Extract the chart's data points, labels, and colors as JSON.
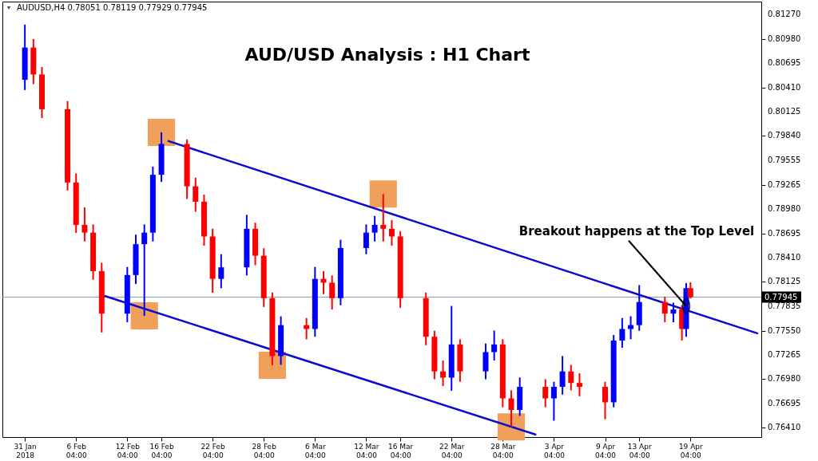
{
  "chart_data": {
    "type": "candlestick",
    "title": "AUD/USD Analysis : H1 Chart",
    "x": [
      "2018-01-31T04:00",
      "2018-02-01T04:00",
      "2018-02-02T04:00",
      "2018-02-05T04:00",
      "2018-02-06T04:00",
      "2018-02-07T04:00",
      "2018-02-08T04:00",
      "2018-02-09T04:00",
      "2018-02-12T04:00",
      "2018-02-13T04:00",
      "2018-02-14T04:00",
      "2018-02-15T04:00",
      "2018-02-16T04:00",
      "2018-02-19T04:00",
      "2018-02-20T04:00",
      "2018-02-21T04:00",
      "2018-02-22T04:00",
      "2018-02-23T04:00",
      "2018-02-26T04:00",
      "2018-02-27T04:00",
      "2018-02-28T04:00",
      "2018-03-01T04:00",
      "2018-03-02T04:00",
      "2018-03-05T04:00",
      "2018-03-06T04:00",
      "2018-03-07T04:00",
      "2018-03-08T04:00",
      "2018-03-09T04:00",
      "2018-03-12T04:00",
      "2018-03-13T04:00",
      "2018-03-14T04:00",
      "2018-03-15T04:00",
      "2018-03-16T04:00",
      "2018-03-19T04:00",
      "2018-03-20T04:00",
      "2018-03-21T04:00",
      "2018-03-22T04:00",
      "2018-03-23T04:00",
      "2018-03-26T04:00",
      "2018-03-27T04:00",
      "2018-03-28T04:00",
      "2018-03-29T04:00",
      "2018-03-30T04:00",
      "2018-04-02T04:00",
      "2018-04-03T04:00",
      "2018-04-04T04:00",
      "2018-04-05T04:00",
      "2018-04-06T04:00",
      "2018-04-09T04:00",
      "2018-04-10T04:00",
      "2018-04-11T04:00",
      "2018-04-12T04:00",
      "2018-04-13T04:00",
      "2018-04-16T04:00",
      "2018-04-17T04:00",
      "2018-04-18T04:00",
      "2018-04-18T16:00",
      "2018-04-19T04:00"
    ],
    "ohlc": [
      [
        0.805,
        0.8115,
        0.8038,
        0.8088
      ],
      [
        0.8088,
        0.8098,
        0.8045,
        0.80563
      ],
      [
        0.80563,
        0.8065,
        0.8005,
        0.80155
      ],
      [
        0.80155,
        0.8025,
        0.792,
        0.79293
      ],
      [
        0.79293,
        0.794,
        0.787,
        0.78795
      ],
      [
        0.78795,
        0.79,
        0.786,
        0.78704
      ],
      [
        0.78704,
        0.788,
        0.7815,
        0.78251
      ],
      [
        0.78251,
        0.7835,
        0.7753,
        0.77752
      ],
      [
        0.77752,
        0.783,
        0.7765,
        0.78205
      ],
      [
        0.78205,
        0.7868,
        0.781,
        0.78568
      ],
      [
        0.78568,
        0.788,
        0.77725,
        0.78704
      ],
      [
        0.78704,
        0.7948,
        0.786,
        0.79384
      ],
      [
        0.79384,
        0.79883,
        0.793,
        0.79747
      ],
      [
        0.79747,
        0.798,
        0.791,
        0.79248
      ],
      [
        0.79248,
        0.7935,
        0.7895,
        0.79067
      ],
      [
        0.79067,
        0.7915,
        0.7855,
        0.78659
      ],
      [
        0.78659,
        0.7875,
        0.77997,
        0.7816
      ],
      [
        0.7816,
        0.7845,
        0.7805,
        0.78296
      ],
      [
        0.78296,
        0.78913,
        0.782,
        0.78749
      ],
      [
        0.78749,
        0.7882,
        0.7832,
        0.78432
      ],
      [
        0.78432,
        0.7852,
        0.7783,
        0.77933
      ],
      [
        0.77933,
        0.78,
        0.77145,
        0.77253
      ],
      [
        0.77253,
        0.7772,
        0.7715,
        0.77616
      ],
      [
        0.77616,
        0.777,
        0.7745,
        0.77571
      ],
      [
        0.77571,
        0.783,
        0.7748,
        0.7816
      ],
      [
        0.7816,
        0.7825,
        0.7798,
        0.78115
      ],
      [
        0.78115,
        0.782,
        0.778,
        0.77933
      ],
      [
        0.77933,
        0.7862,
        0.7785,
        0.78523
      ],
      [
        0.78523,
        0.788,
        0.7845,
        0.78704
      ],
      [
        0.78704,
        0.789,
        0.786,
        0.78795
      ],
      [
        0.78795,
        0.79157,
        0.786,
        0.78749
      ],
      [
        0.78749,
        0.7885,
        0.7855,
        0.78659
      ],
      [
        0.78659,
        0.7872,
        0.7782,
        0.77933
      ],
      [
        0.77933,
        0.78,
        0.7738,
        0.7748
      ],
      [
        0.7748,
        0.7755,
        0.7698,
        0.77072
      ],
      [
        0.77072,
        0.772,
        0.769,
        0.76999
      ],
      [
        0.76999,
        0.77842,
        0.76845,
        0.77389
      ],
      [
        0.77389,
        0.7745,
        0.7695,
        0.77072
      ],
      [
        0.77072,
        0.774,
        0.7698,
        0.77299
      ],
      [
        0.77299,
        0.77552,
        0.772,
        0.77389
      ],
      [
        0.77389,
        0.7745,
        0.7665,
        0.76755
      ],
      [
        0.76755,
        0.7685,
        0.76419,
        0.76619
      ],
      [
        0.76619,
        0.77,
        0.7655,
        0.76891
      ],
      [
        0.76891,
        0.7698,
        0.7665,
        0.76755
      ],
      [
        0.76755,
        0.7695,
        0.76492,
        0.76891
      ],
      [
        0.76891,
        0.77253,
        0.768,
        0.77072
      ],
      [
        0.77072,
        0.7715,
        0.7685,
        0.76936
      ],
      [
        0.76936,
        0.7705,
        0.7678,
        0.76891
      ],
      [
        0.76891,
        0.7695,
        0.7651,
        0.76709
      ],
      [
        0.76709,
        0.775,
        0.7665,
        0.77435
      ],
      [
        0.77435,
        0.777,
        0.7735,
        0.77571
      ],
      [
        0.77571,
        0.7772,
        0.7745,
        0.77616
      ],
      [
        0.77616,
        0.78087,
        0.7755,
        0.77888
      ],
      [
        0.77888,
        0.7795,
        0.7765,
        0.77752
      ],
      [
        0.77752,
        0.7788,
        0.7765,
        0.778
      ],
      [
        0.778,
        0.7785,
        0.77435,
        0.77571
      ],
      [
        0.77571,
        0.7811,
        0.7748,
        0.78051
      ],
      [
        0.78051,
        0.78119,
        0.77929,
        0.77945
      ]
    ],
    "colors": [
      "#0000ff",
      "#ff0000",
      "#ff0000",
      "#ff0000",
      "#ff0000",
      "#ff0000",
      "#ff0000",
      "#ff0000",
      "#0000ff",
      "#0000ff",
      "#0000ff",
      "#0000ff",
      "#0000ff",
      "#ff0000",
      "#ff0000",
      "#ff0000",
      "#ff0000",
      "#0000ff",
      "#0000ff",
      "#ff0000",
      "#ff0000",
      "#ff0000",
      "#0000ff",
      "#ff0000",
      "#0000ff",
      "#ff0000",
      "#ff0000",
      "#0000ff",
      "#0000ff",
      "#0000ff",
      "#ff0000",
      "#ff0000",
      "#ff0000",
      "#ff0000",
      "#ff0000",
      "#ff0000",
      "#0000ff",
      "#ff0000",
      "#0000ff",
      "#0000ff",
      "#ff0000",
      "#ff0000",
      "#0000ff",
      "#ff0000",
      "#0000ff",
      "#0000ff",
      "#ff0000",
      "#ff0000",
      "#ff0000",
      "#0000ff",
      "#0000ff",
      "#0000ff",
      "#0000ff",
      "#ff0000",
      "#0000ff",
      "#ff0000",
      "#0000ff",
      "#ff0000"
    ],
    "series": [
      {
        "type": "line",
        "color": "#0a0ad2",
        "x": [
          "2018-02-17T00:00",
          "2018-04-27T00:00"
        ],
        "values": [
          0.7978,
          0.7752
        ]
      },
      {
        "type": "line",
        "color": "#0a0ad2",
        "x": [
          "2018-02-09T12:00",
          "2018-04-01T00:00"
        ],
        "values": [
          0.7796,
          0.7633
        ]
      }
    ],
    "xlim": [
      "2018-01-29",
      "2018-04-27"
    ],
    "ylim": [
      0.763,
      0.8142
    ],
    "xticks": [
      {
        "value": "2018-01-31T04:00",
        "label": "31 Jan 2018"
      },
      {
        "value": "2018-02-06T04:00",
        "label": "6 Feb 04:00"
      },
      {
        "value": "2018-02-12T04:00",
        "label": "12 Feb 04:00"
      },
      {
        "value": "2018-02-16T04:00",
        "label": "16 Feb 04:00"
      },
      {
        "value": "2018-02-22T04:00",
        "label": "22 Feb 04:00"
      },
      {
        "value": "2018-02-28T04:00",
        "label": "28 Feb 04:00"
      },
      {
        "value": "2018-03-06T04:00",
        "label": "6 Mar 04:00"
      },
      {
        "value": "2018-03-12T04:00",
        "label": "12 Mar 04:00"
      },
      {
        "value": "2018-03-16T04:00",
        "label": "16 Mar 04:00"
      },
      {
        "value": "2018-03-22T04:00",
        "label": "22 Mar 04:00"
      },
      {
        "value": "2018-03-28T04:00",
        "label": "28 Mar 04:00"
      },
      {
        "value": "2018-04-03T04:00",
        "label": "3 Apr 04:00"
      },
      {
        "value": "2018-04-09T04:00",
        "label": "9 Apr 04:00"
      },
      {
        "value": "2018-04-13T04:00",
        "label": "13 Apr 04:00"
      },
      {
        "value": "2018-04-19T04:00",
        "label": "19 Apr 04:00"
      }
    ],
    "yticks": [
      {
        "value": 0.8127,
        "label": "0.81270"
      },
      {
        "value": 0.8098,
        "label": "0.80980"
      },
      {
        "value": 0.80695,
        "label": "0.80695"
      },
      {
        "value": 0.8041,
        "label": "0.80410"
      },
      {
        "value": 0.80125,
        "label": "0.80125"
      },
      {
        "value": 0.7984,
        "label": "0.79840"
      },
      {
        "value": 0.79555,
        "label": "0.79555"
      },
      {
        "value": 0.79265,
        "label": "0.79265"
      },
      {
        "value": 0.7898,
        "label": "0.78980"
      },
      {
        "value": 0.78695,
        "label": "0.78695"
      },
      {
        "value": 0.7841,
        "label": "0.78410"
      },
      {
        "value": 0.78125,
        "label": "0.78125"
      },
      {
        "value": 0.77835,
        "label": "0.77835"
      },
      {
        "value": 0.7755,
        "label": "0.77550"
      },
      {
        "value": 0.77265,
        "label": "0.77265"
      },
      {
        "value": 0.7698,
        "label": "0.76980"
      },
      {
        "value": 0.76695,
        "label": "0.76695"
      },
      {
        "value": 0.7641,
        "label": "0.76410"
      }
    ],
    "ref_lines": [
      {
        "axis": "y",
        "value": 0.77945,
        "label": "0.77945",
        "color": "#8a9ab0"
      }
    ],
    "annotations": [
      "AUDUSD,H4  0.78051 0.78119 0.77929 0.77945",
      {
        "text": "Breakout happens at the Top Level",
        "x": "2018-04-18T16:00",
        "y": 0.7784
      }
    ],
    "grid": false
  }
}
